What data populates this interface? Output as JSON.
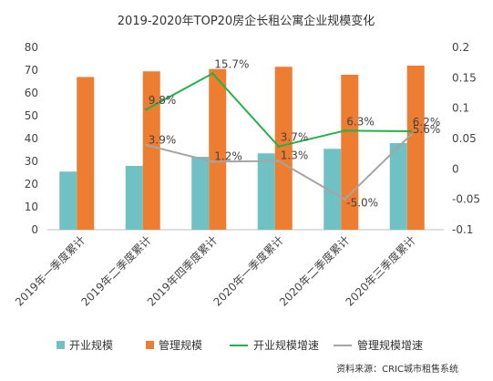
{
  "chart_data": {
    "type": "bar",
    "title": "2019-2020年TOP20房企长租公寓企业规模变化",
    "categories": [
      "2019年一季度累计",
      "2019年二季度累计",
      "2019年四季度累计",
      "2020年一季度累计",
      "2020年二季度累计",
      "2020年三季度累计"
    ],
    "left_axis": {
      "ylim": [
        0,
        80
      ],
      "ticks": [
        "0",
        "10",
        "20",
        "30",
        "40",
        "50",
        "60",
        "70",
        "80"
      ]
    },
    "right_axis": {
      "ylim": [
        -0.1,
        0.2
      ],
      "ticks": [
        "-0.1",
        "-0.05",
        "0",
        "0.05",
        "0.1",
        "0.15",
        "0.2"
      ]
    },
    "series": [
      {
        "name": "开业规模",
        "type": "bar",
        "axis": "left",
        "color": "#70c1c4",
        "values": [
          25.5,
          28,
          32,
          33.5,
          35.5,
          38
        ]
      },
      {
        "name": "管理规模",
        "type": "bar",
        "axis": "left",
        "color": "#ed7d31",
        "values": [
          67,
          69.5,
          70.5,
          71.5,
          68,
          72
        ]
      },
      {
        "name": "开业规模增速",
        "type": "line",
        "axis": "right",
        "color": "#22b14c",
        "values": [
          null,
          0.098,
          0.157,
          0.037,
          0.063,
          0.062
        ],
        "labels": [
          "",
          "9.8%",
          "15.7%",
          "3.7%",
          "6.3%",
          "6.2%"
        ]
      },
      {
        "name": "管理规模增速",
        "type": "line",
        "axis": "right",
        "color": "#a5a5a5",
        "values": [
          null,
          0.039,
          0.012,
          0.013,
          -0.05,
          0.056
        ],
        "labels": [
          "",
          "3.9%",
          "1.2%",
          "1.3%",
          "-5.0%",
          "5.6%"
        ]
      }
    ],
    "grid": false,
    "legend": "bottom",
    "source": "资料来源：CRIC城市租售系统"
  }
}
